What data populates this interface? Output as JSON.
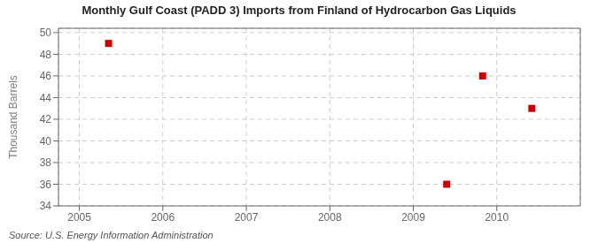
{
  "chart_data": {
    "type": "scatter",
    "title": "Monthly Gulf Coast (PADD 3) Imports from Finland of Hydrocarbon Gas Liquids",
    "ylabel": "Thousand Barrels",
    "annotations": [
      "Source: U.S. Energy Information Administration"
    ],
    "x": [
      2005.35,
      2009.4,
      2009.83,
      2010.42
    ],
    "values": [
      49,
      36,
      46,
      43
    ],
    "color": "#cc0000",
    "marker": "square",
    "xlim": [
      2004.75,
      2011.0
    ],
    "ylim": [
      34,
      50.4
    ],
    "xticks": [
      2005,
      2006,
      2007,
      2008,
      2009,
      2010
    ],
    "yticks": [
      34,
      36,
      38,
      40,
      42,
      44,
      46,
      48,
      50
    ],
    "grid": true
  }
}
